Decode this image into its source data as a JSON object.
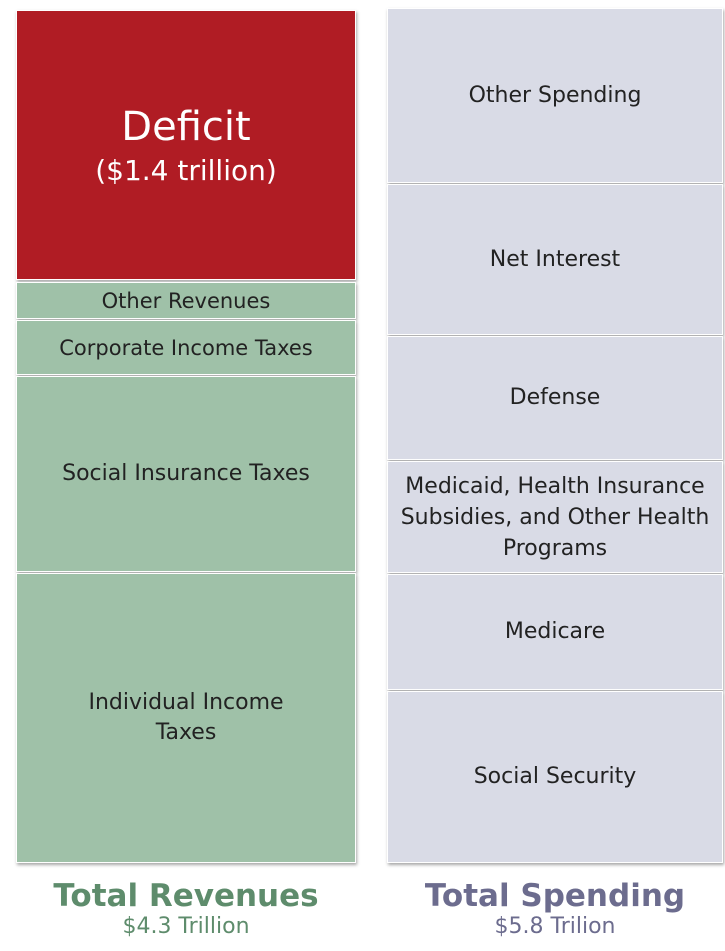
{
  "revenues": {
    "blocks": [
      {
        "label": "Deficit",
        "sublabel": "($1.4 trillion)"
      },
      {
        "label": "Other Revenues"
      },
      {
        "label": "Corporate Income Taxes"
      },
      {
        "label": "Social Insurance Taxes"
      },
      {
        "label": "Individual Income Taxes"
      }
    ],
    "title": "Total Revenues",
    "total": "$4.3 Trillion"
  },
  "spending": {
    "blocks": [
      {
        "label": "Other Spending"
      },
      {
        "label": "Net Interest"
      },
      {
        "label": "Defense"
      },
      {
        "label": "Medicaid, Health Insurance Subsidies, and Other Health Programs"
      },
      {
        "label": "Medicare"
      },
      {
        "label": "Social Security"
      }
    ],
    "title": "Total Spending",
    "total": "$5.8 Trilion"
  }
}
